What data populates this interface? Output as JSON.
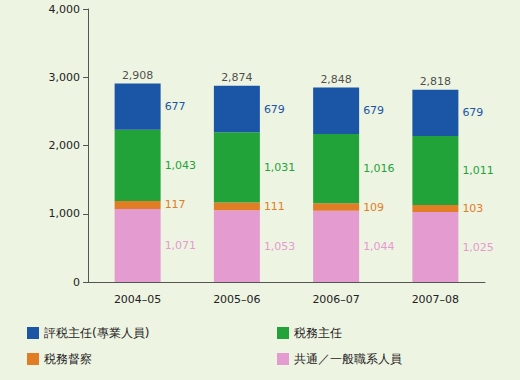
{
  "chart_data": {
    "type": "bar",
    "stacked": true,
    "data_labels": true,
    "grid": false,
    "legend": "bottom",
    "categories": [
      "2004–05",
      "2005–06",
      "2006–07",
      "2007–08"
    ],
    "ylim": [
      0,
      4000
    ],
    "yticks": [
      0,
      {
        "value": 1000,
        "label": "1,000"
      },
      {
        "value": 2000,
        "label": "2,000"
      },
      {
        "value": 3000,
        "label": "3,000"
      },
      {
        "value": 4000,
        "label": "4,000"
      }
    ],
    "series": [
      {
        "name": "共通／一般職系人員",
        "color": "#e39bd0",
        "values": [
          1071,
          1053,
          1044,
          1025
        ],
        "value_labels": [
          "1,071",
          "1,053",
          "1,044",
          "1,025"
        ]
      },
      {
        "name": "税務督察",
        "color": "#e07d25",
        "values": [
          117,
          111,
          109,
          103
        ]
      },
      {
        "name": "税務主任",
        "color": "#22a33a",
        "values": [
          1043,
          1031,
          1016,
          1011
        ],
        "value_labels": [
          "1,043",
          "1,031",
          "1,016",
          "1,011"
        ]
      },
      {
        "name": "評税主任(專業人員)",
        "color": "#1a55a6",
        "values": [
          677,
          679,
          679,
          679
        ]
      }
    ],
    "totals": [
      2908,
      2874,
      2848,
      2818
    ],
    "total_labels": [
      "2,908",
      "2,874",
      "2,848",
      "2,818"
    ]
  }
}
